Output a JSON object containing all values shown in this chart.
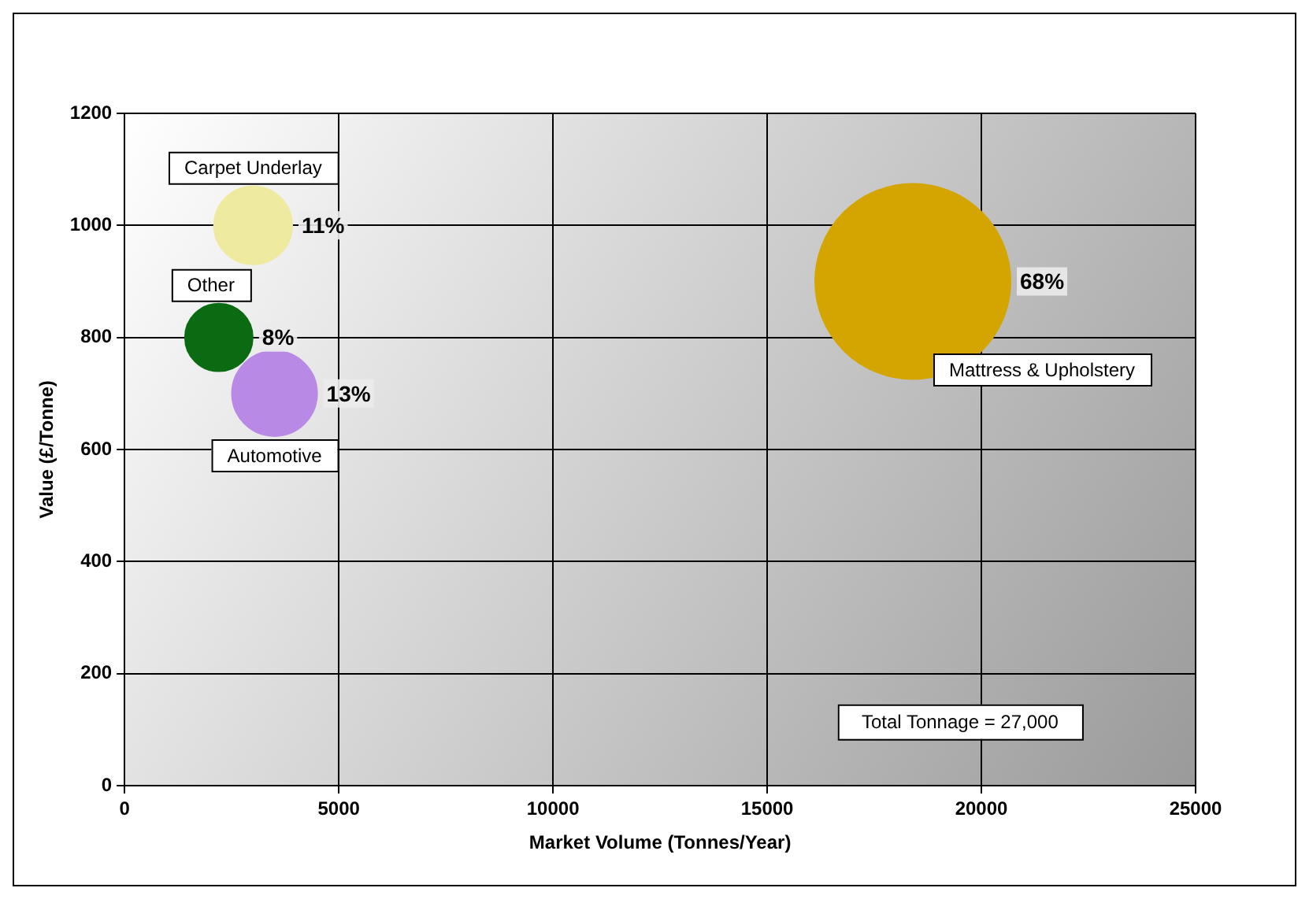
{
  "chart_data": {
    "type": "bubble",
    "xlabel": "Market Volume (Tonnes/Year)",
    "ylabel": "Value (£/Tonne)",
    "xlim": [
      0,
      25000
    ],
    "xticks": [
      0,
      5000,
      10000,
      15000,
      20000,
      25000
    ],
    "ylim": [
      0,
      1200
    ],
    "yticks": [
      0,
      200,
      400,
      600,
      800,
      1000,
      1200
    ],
    "grid": true,
    "legend": false,
    "series": [
      {
        "name": "Carpet Underlay",
        "color": "#eeeaa0",
        "x": [
          3000
        ],
        "values": [
          1000
        ],
        "sizes": [
          0.16
        ]
      },
      {
        "name": "Other",
        "color": "#0b6b12",
        "x": [
          2200
        ],
        "values": [
          800
        ],
        "sizes": [
          0.12
        ]
      },
      {
        "name": "Automotive",
        "color": "#b88ae6",
        "x": [
          3500
        ],
        "values": [
          700
        ],
        "sizes": [
          0.19
        ]
      },
      {
        "name": "Mattress & Upholstery",
        "color": "#d4a500",
        "x": [
          18400
        ],
        "values": [
          900
        ],
        "sizes": [
          1
        ]
      }
    ],
    "annotations": [
      "Total Tonnage = 27,000",
      "11%",
      "8%",
      "13%",
      "68%"
    ]
  }
}
